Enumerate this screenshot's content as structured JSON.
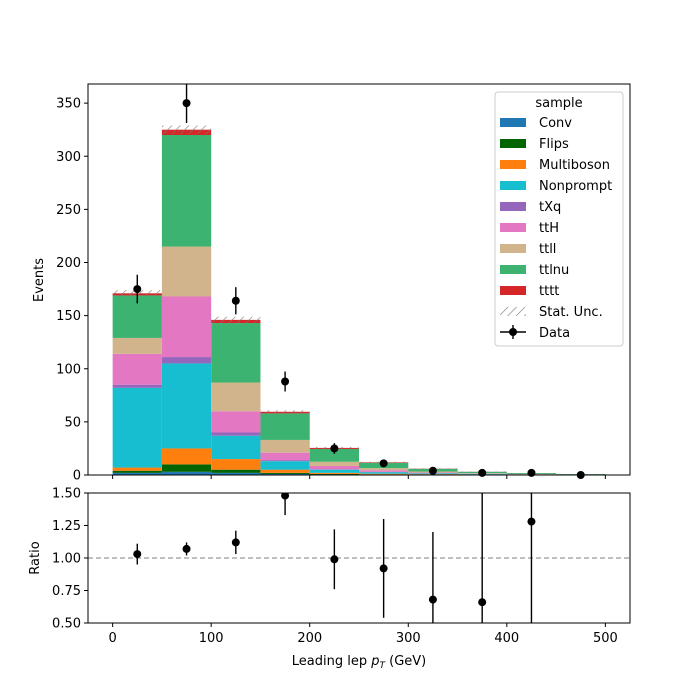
{
  "colors": {
    "Conv": "#1f77b4",
    "Flips": "#006400",
    "Multiboson": "#ff7f0e",
    "Nonprompt": "#17becf",
    "tXq": "#9467bd",
    "ttH": "#e377c2",
    "ttll": "#d2b48c",
    "ttlnu": "#3cb371",
    "tttt": "#d62728"
  },
  "chart_data": [
    {
      "type": "bar",
      "stacked": true,
      "bin_edges": [
        0,
        50,
        100,
        150,
        200,
        250,
        300,
        350,
        400,
        450,
        500
      ],
      "series": [
        {
          "name": "Conv",
          "values": [
            2,
            3,
            2,
            1,
            0.5,
            0.3,
            0.2,
            0.1,
            0.05,
            0.02
          ]
        },
        {
          "name": "Flips",
          "values": [
            2,
            7,
            3,
            1,
            0.5,
            0.3,
            0.2,
            0.1,
            0.05,
            0.02
          ]
        },
        {
          "name": "Multiboson",
          "values": [
            3,
            15,
            10,
            3,
            1,
            0.6,
            0.4,
            0.2,
            0.1,
            0.05
          ]
        },
        {
          "name": "Nonprompt",
          "values": [
            75,
            80,
            22,
            8,
            3,
            1.5,
            0.8,
            0.4,
            0.2,
            0.1
          ]
        },
        {
          "name": "tXq",
          "values": [
            3,
            6,
            3,
            1,
            0.5,
            0.3,
            0.1,
            0.1,
            0.05,
            0.02
          ]
        },
        {
          "name": "ttH",
          "values": [
            29,
            57,
            20,
            7,
            3,
            1.5,
            0.6,
            0.3,
            0.2,
            0.1
          ]
        },
        {
          "name": "ttll",
          "values": [
            15,
            47,
            27,
            12,
            4,
            2,
            1,
            0.5,
            0.2,
            0.1
          ]
        },
        {
          "name": "ttlnu",
          "values": [
            40,
            105,
            56,
            25,
            12,
            5,
            2.5,
            1.3,
            0.9,
            0.4
          ]
        },
        {
          "name": "tttt",
          "values": [
            2,
            5,
            3,
            1.5,
            1,
            0.5,
            0.2,
            0.1,
            0.05,
            0.02
          ]
        }
      ],
      "stat_unc": [
        3,
        4,
        3,
        1.5,
        1,
        0.5,
        0.3,
        0.2,
        0.1,
        0.05
      ],
      "data": {
        "name": "Data",
        "x": [
          25,
          75,
          125,
          175,
          225,
          275,
          325,
          375,
          425,
          475
        ],
        "y": [
          175,
          350,
          164,
          88,
          25,
          11,
          4,
          2,
          2,
          0
        ],
        "yerr": [
          13.5,
          18.7,
          12.8,
          9.4,
          5,
          3.3,
          2,
          1.4,
          1.4,
          0
        ]
      },
      "ylabel": "Events",
      "ylim": [
        0,
        368
      ],
      "yticks": [
        0,
        50,
        100,
        150,
        200,
        250,
        300,
        350
      ],
      "legend_title": "sample",
      "legend_position": "top-right",
      "unc_label": "Stat. Unc."
    },
    {
      "type": "scatter",
      "x": [
        25,
        75,
        125,
        175,
        225,
        275,
        325,
        375,
        425
      ],
      "y": [
        1.03,
        1.07,
        1.12,
        1.48,
        0.99,
        0.92,
        0.68,
        0.66,
        1.28
      ],
      "yerr": [
        0.08,
        0.05,
        0.09,
        0.15,
        0.23,
        0.38,
        0.52,
        1.0,
        0.8
      ],
      "reference_line": 1.0,
      "xlabel": "Leading lep ",
      "xlabel_math": "p",
      "xlabel_sub": "T",
      "xlabel_unit": " (GeV)",
      "ylabel": "Ratio",
      "xlim": [
        -25,
        525
      ],
      "xticks": [
        0,
        100,
        200,
        300,
        400,
        500
      ],
      "ylim": [
        0.5,
        1.5
      ],
      "yticks": [
        "0.50",
        "0.75",
        "1.00",
        "1.25",
        "1.50"
      ]
    }
  ]
}
